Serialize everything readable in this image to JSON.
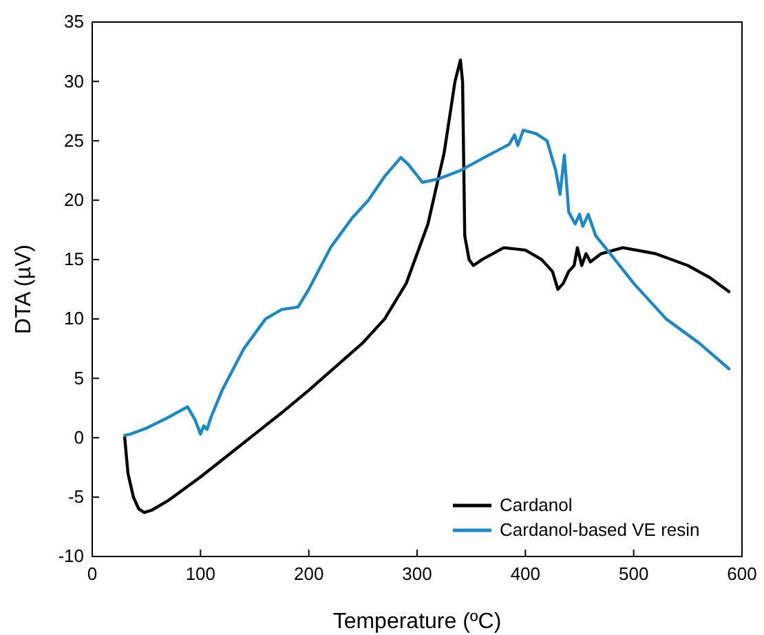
{
  "chart_data": {
    "type": "line",
    "xlabel": "Temperature (ºC)",
    "ylabel": "DTA (µV)",
    "xlim": [
      0,
      600
    ],
    "ylim": [
      -10,
      35
    ],
    "xticks": [
      0,
      100,
      200,
      300,
      400,
      500,
      600
    ],
    "yticks": [
      -10,
      -5,
      0,
      5,
      10,
      15,
      20,
      25,
      30,
      35
    ],
    "grid": false,
    "legend": "bottom right",
    "line_style": "solid",
    "series": [
      {
        "name": "Cardanol",
        "color": "#000000",
        "x": [
          30,
          33,
          38,
          43,
          48,
          55,
          70,
          85,
          100,
          125,
          150,
          175,
          200,
          225,
          250,
          270,
          290,
          310,
          325,
          335,
          340,
          342,
          344,
          348,
          352,
          360,
          380,
          400,
          415,
          425,
          430,
          435,
          440,
          445,
          448,
          452,
          456,
          460,
          470,
          490,
          520,
          550,
          570,
          588
        ],
        "values": [
          0,
          -3,
          -5,
          -6,
          -6.3,
          -6.1,
          -5.3,
          -4.3,
          -3.3,
          -1.5,
          0.3,
          2.1,
          4,
          6,
          8,
          10,
          13,
          18,
          24,
          30,
          31.8,
          30,
          17,
          15,
          14.5,
          15,
          16,
          15.8,
          15,
          14,
          12.5,
          13,
          14,
          14.5,
          16,
          14.5,
          15.5,
          14.8,
          15.5,
          16,
          15.5,
          14.5,
          13.5,
          12.3
        ]
      },
      {
        "name": "Cardanol-based VE resin",
        "color": "#1a88c9",
        "x": [
          30,
          35,
          50,
          70,
          88,
          95,
          100,
          103,
          106,
          110,
          120,
          140,
          160,
          175,
          190,
          200,
          220,
          240,
          255,
          270,
          285,
          292,
          305,
          320,
          340,
          360,
          385,
          390,
          393,
          398,
          410,
          420,
          428,
          432,
          436,
          440,
          446,
          450,
          453,
          458,
          465,
          480,
          500,
          530,
          560,
          588
        ],
        "values": [
          0.2,
          0.3,
          0.8,
          1.7,
          2.6,
          1.5,
          0.3,
          1,
          0.7,
          1.8,
          4,
          7.5,
          10,
          10.8,
          11,
          12.5,
          16,
          18.5,
          20,
          22,
          23.6,
          23,
          21.5,
          21.8,
          22.5,
          23.5,
          24.7,
          25.5,
          24.6,
          25.9,
          25.6,
          25,
          22.5,
          20.5,
          23.8,
          19,
          18,
          18.8,
          17.8,
          18.8,
          17,
          15.3,
          13,
          10,
          8,
          5.8
        ]
      }
    ]
  }
}
